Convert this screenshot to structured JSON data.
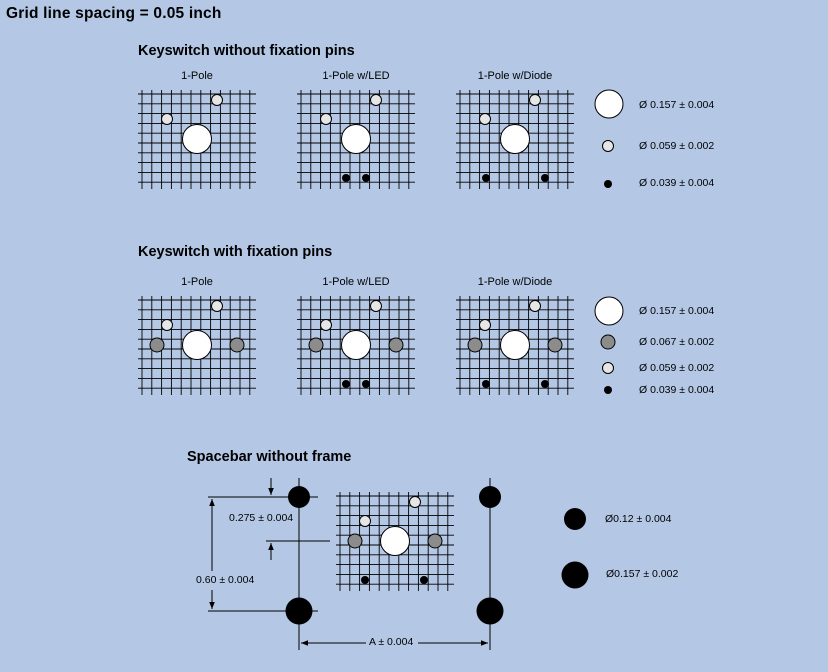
{
  "title": "Grid line spacing = 0.05 inch",
  "sections": {
    "no_pins": {
      "title": "Keyswitch without fixation pins",
      "labels": [
        "1-Pole",
        "1-Pole w/LED",
        "1-Pole w/Diode"
      ],
      "legend": [
        "Ø 0.157 ± 0.004",
        "Ø 0.059 ± 0.002",
        "Ø 0.039 ± 0.004"
      ]
    },
    "with_pins": {
      "title": "Keyswitch with fixation pins",
      "labels": [
        "1-Pole",
        "1-Pole w/LED",
        "1-Pole w/Diode"
      ],
      "legend": [
        "Ø 0.157 ± 0.004",
        "Ø 0.067 ± 0.002",
        "Ø 0.059 ± 0.002",
        "Ø 0.039 ± 0.004"
      ]
    },
    "spacebar": {
      "title": "Spacebar without frame",
      "dims": {
        "offset": "0.275 ± 0.004",
        "height": "0.60 ± 0.004",
        "width": "A ± 0.004"
      },
      "legend": [
        "Ø0.12 ± 0.004",
        "Ø0.157 ± 0.002"
      ]
    }
  },
  "colors": {
    "background": "#b4c8e6",
    "large_hole": "#ffffff",
    "small_hole": "#e6e6e6",
    "fixation_pin": "#8c8c8c",
    "led_pin": "#000000"
  }
}
